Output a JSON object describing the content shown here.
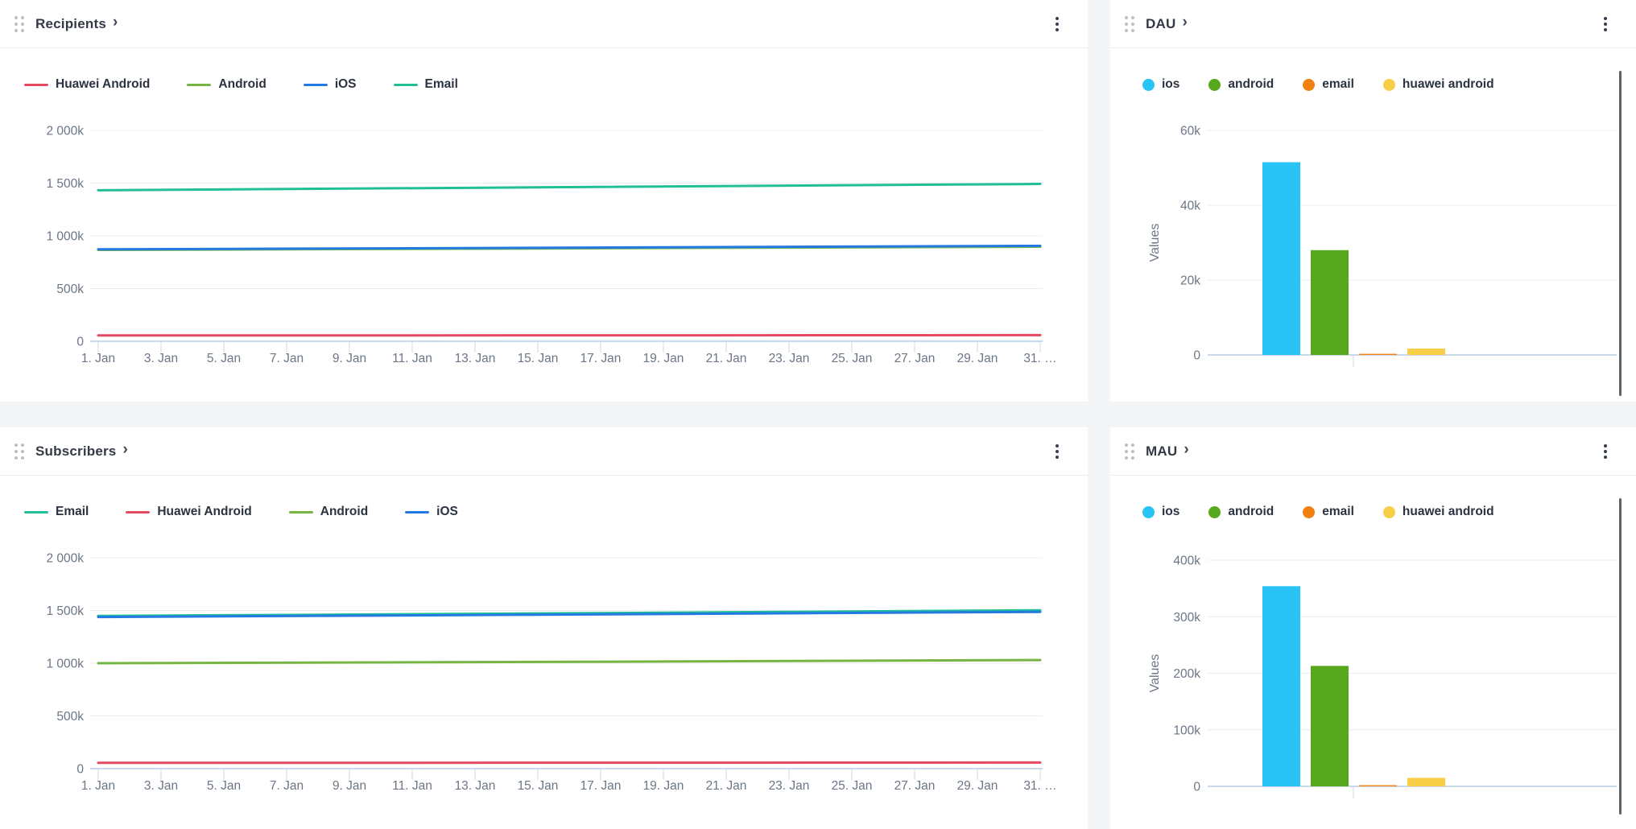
{
  "ui": {
    "title_chevron": "›"
  },
  "colors": {
    "page_bg": "#f4f5f7",
    "panel_bg": "#ffffff",
    "header_divider": "#e8eef4",
    "grid_line": "#ebecee",
    "axis_line": "#c9d9ea",
    "axis_text": "#6b7686",
    "title_text": "#333a45",
    "legend_text": "#2b3240",
    "scrollbar": "#5f6368"
  },
  "panels": [
    {
      "title": "Recipients",
      "chart_data": {
        "type": "line",
        "title": "Recipients",
        "xlabel": "",
        "ylabel": "",
        "ylim_k": [
          0,
          2000
        ],
        "y_ticks": [
          "0",
          "500k",
          "1 000k",
          "1 500k",
          "2 000k"
        ],
        "x_range_days": [
          1,
          31
        ],
        "x_tick_labels": [
          "1. Jan",
          "3. Jan",
          "5. Jan",
          "7. Jan",
          "9. Jan",
          "11. Jan",
          "13. Jan",
          "15. Jan",
          "17. Jan",
          "19. Jan",
          "21. Jan",
          "23. Jan",
          "25. Jan",
          "27. Jan",
          "29. Jan",
          "31. …"
        ],
        "unit": "thousands",
        "series": [
          {
            "name": "Huawei Android",
            "color": "#E64A62",
            "points_k": [
              [
                1,
                55
              ],
              [
                15,
                56
              ],
              [
                31,
                58
              ]
            ]
          },
          {
            "name": "Android",
            "color": "#77B543",
            "points_k": [
              [
                1,
                866
              ],
              [
                15,
                880
              ],
              [
                31,
                897
              ]
            ]
          },
          {
            "name": "iOS",
            "color": "#2479E2",
            "points_k": [
              [
                1,
                872
              ],
              [
                15,
                886
              ],
              [
                31,
                905
              ]
            ]
          },
          {
            "name": "Email",
            "color": "#21BF96",
            "points_k": [
              [
                1,
                1432
              ],
              [
                15,
                1460
              ],
              [
                31,
                1492
              ]
            ]
          }
        ],
        "legend_position": "top-left",
        "grid": true
      }
    },
    {
      "title": "DAU",
      "chart_data": {
        "type": "bar",
        "title": "DAU",
        "xlabel": "",
        "ylabel": "Values",
        "ylim_k": [
          0,
          60
        ],
        "y_ticks": [
          "0",
          "20k",
          "40k",
          "60k"
        ],
        "categories": [
          ""
        ],
        "unit": "thousands",
        "series": [
          {
            "name": "ios",
            "color": "#29C4F6",
            "values_k": [
              51.5
            ]
          },
          {
            "name": "android",
            "color": "#57A81C",
            "values_k": [
              28
            ]
          },
          {
            "name": "email",
            "color": "#F0810F",
            "values_k": [
              0.3
            ]
          },
          {
            "name": "huawei android",
            "color": "#F7CE45",
            "values_k": [
              1.7
            ]
          }
        ],
        "legend_position": "top-left",
        "grid": true
      }
    },
    {
      "title": "Subscribers",
      "chart_data": {
        "type": "line",
        "title": "Subscribers",
        "xlabel": "",
        "ylabel": "",
        "ylim_k": [
          0,
          2000
        ],
        "y_ticks": [
          "0",
          "500k",
          "1 000k",
          "1 500k",
          "2 000k"
        ],
        "x_range_days": [
          1,
          31
        ],
        "x_tick_labels": [
          "1. Jan",
          "3. Jan",
          "5. Jan",
          "7. Jan",
          "9. Jan",
          "11. Jan",
          "13. Jan",
          "15. Jan",
          "17. Jan",
          "19. Jan",
          "21. Jan",
          "23. Jan",
          "25. Jan",
          "27. Jan",
          "29. Jan",
          "31. …"
        ],
        "unit": "thousands",
        "series": [
          {
            "name": "Email",
            "color": "#21BF96",
            "points_k": [
              [
                1,
                1448
              ],
              [
                15,
                1472
              ],
              [
                31,
                1502
              ]
            ]
          },
          {
            "name": "Huawei Android",
            "color": "#E64A62",
            "points_k": [
              [
                1,
                55
              ],
              [
                15,
                56
              ],
              [
                31,
                58
              ]
            ]
          },
          {
            "name": "Android",
            "color": "#77B543",
            "points_k": [
              [
                1,
                1000
              ],
              [
                15,
                1012
              ],
              [
                31,
                1030
              ]
            ]
          },
          {
            "name": "iOS",
            "color": "#2479E2",
            "points_k": [
              [
                1,
                1438
              ],
              [
                15,
                1460
              ],
              [
                31,
                1487
              ]
            ]
          }
        ],
        "legend_position": "top-left",
        "grid": true
      }
    },
    {
      "title": "MAU",
      "chart_data": {
        "type": "bar",
        "title": "MAU",
        "xlabel": "",
        "ylabel": "Values",
        "ylim_k": [
          0,
          400
        ],
        "y_ticks": [
          "0",
          "100k",
          "200k",
          "300k",
          "400k"
        ],
        "categories": [
          ""
        ],
        "unit": "thousands",
        "series": [
          {
            "name": "ios",
            "color": "#29C4F6",
            "values_k": [
              354
            ]
          },
          {
            "name": "android",
            "color": "#57A81C",
            "values_k": [
              213
            ]
          },
          {
            "name": "email",
            "color": "#F0810F",
            "values_k": [
              2
            ]
          },
          {
            "name": "huawei android",
            "color": "#F7CE45",
            "values_k": [
              15
            ]
          }
        ],
        "legend_position": "top-left",
        "grid": true
      }
    }
  ]
}
